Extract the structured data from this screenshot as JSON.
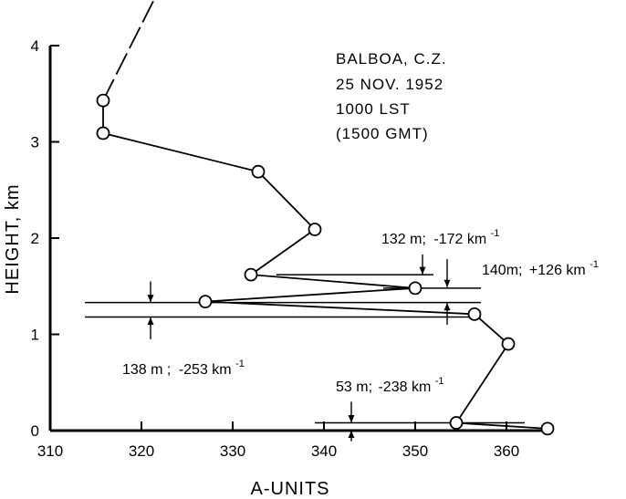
{
  "chart_data": {
    "type": "line",
    "title": "",
    "notes": [
      "BALBOA, C.Z.",
      "25 NOV. 1952",
      "1000 LST",
      "(1500 GMT)"
    ],
    "xlabel": "A-UNITS",
    "ylabel": "HEIGHT, km",
    "xlim": [
      310,
      365
    ],
    "ylim": [
      0,
      4
    ],
    "xticks": [
      310,
      320,
      330,
      340,
      350,
      360
    ],
    "yticks": [
      0,
      1,
      2,
      3,
      4
    ],
    "grid": false,
    "series": [
      {
        "x": [
          364.5,
          354.5,
          360.2,
          356.5,
          327.0,
          350.0,
          332.0,
          339.0,
          332.8,
          315.8,
          315.8
        ],
        "y": [
          0.02,
          0.08,
          0.9,
          1.21,
          1.34,
          1.48,
          1.62,
          2.09,
          2.69,
          3.09,
          3.43
        ],
        "extension_dashed": {
          "x": [
            315.8,
            321.5
          ],
          "y": [
            3.43,
            4.5
          ]
        }
      }
    ],
    "layers": [
      {
        "label_value": "53 m;",
        "label_gradient": "-238 km",
        "label_unit_exp": "-1",
        "bottom": 0.0,
        "top": 0.08
      },
      {
        "label_value": "138 m ;",
        "label_gradient": "-253 km",
        "label_unit_exp": "-1",
        "bottom": 1.18,
        "top": 1.33
      },
      {
        "label_value": "140m;",
        "label_gradient": "+126 km",
        "label_unit_exp": "-1",
        "bottom": 1.33,
        "top": 1.48
      },
      {
        "label_value": "132 m;",
        "label_gradient": "-172 km",
        "label_unit_exp": "-1",
        "bottom": 1.48,
        "top": 1.62
      }
    ]
  }
}
